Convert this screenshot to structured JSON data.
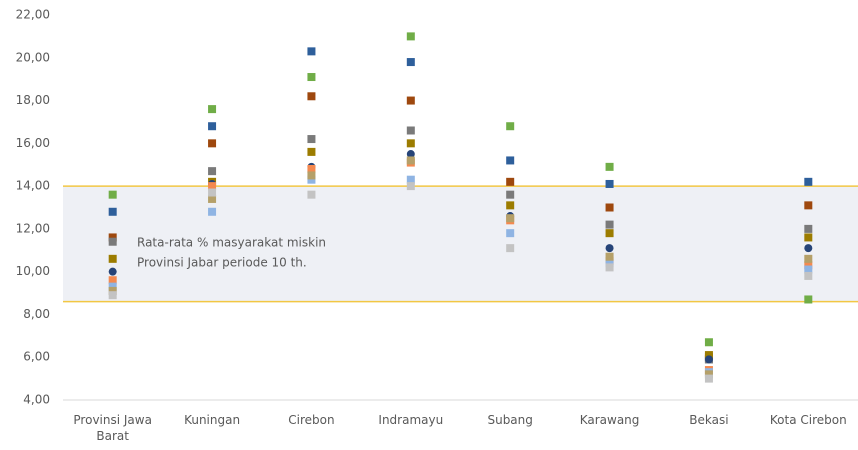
{
  "chart_data": {
    "type": "dot",
    "categories": [
      "Provinsi Jawa Barat",
      "Kuningan",
      "Cirebon",
      "Indramayu",
      "Subang",
      "Karawang",
      "Bekasi",
      "Kota Cirebon"
    ],
    "series": [
      {
        "color": "#2e5f9b",
        "marker": "square",
        "values": [
          12.8,
          16.8,
          20.3,
          19.8,
          15.2,
          14.1,
          5.9,
          14.2
        ]
      },
      {
        "color": "#70ad47",
        "marker": "square",
        "values": [
          13.6,
          17.6,
          19.1,
          21.0,
          16.8,
          14.9,
          6.7,
          8.7
        ]
      },
      {
        "color": "#9e480e",
        "marker": "square",
        "values": [
          11.6,
          16.0,
          18.2,
          18.0,
          14.2,
          13.0,
          6.0,
          13.1
        ]
      },
      {
        "color": "#7a7a7a",
        "marker": "square",
        "values": [
          11.4,
          14.7,
          16.2,
          16.6,
          13.6,
          12.2,
          5.9,
          12.0
        ]
      },
      {
        "color": "#9c7c00",
        "marker": "square",
        "values": [
          10.6,
          14.2,
          15.6,
          16.0,
          13.1,
          11.8,
          6.1,
          11.6
        ]
      },
      {
        "color": "#264478",
        "marker": "circle",
        "values": [
          10.0,
          14.1,
          14.9,
          15.5,
          12.6,
          11.1,
          5.9,
          11.1
        ]
      },
      {
        "color": "#f4894f",
        "marker": "square",
        "values": [
          9.6,
          14.0,
          14.8,
          15.1,
          12.4,
          10.5,
          5.4,
          10.3
        ]
      },
      {
        "color": "#8fb4e3",
        "marker": "square",
        "values": [
          9.3,
          12.8,
          14.3,
          14.3,
          11.8,
          10.4,
          5.3,
          10.1
        ]
      },
      {
        "color": "#b5a069",
        "marker": "square",
        "values": [
          9.1,
          13.4,
          14.5,
          15.2,
          12.5,
          10.7,
          5.2,
          10.6
        ]
      },
      {
        "color": "#c3c3c3",
        "marker": "square",
        "values": [
          8.9,
          13.7,
          13.6,
          14.0,
          11.1,
          10.2,
          5.0,
          9.8
        ]
      }
    ],
    "band": {
      "lower": 8.6,
      "upper": 14.0,
      "color": "#eef0f5",
      "line_color": "#f2c744"
    },
    "annotation": [
      "Rata-rata % masyarakat miskin",
      "Provinsi Jabar periode 10 th."
    ],
    "ylim": [
      4,
      22
    ],
    "yticks": [
      {
        "value": 4,
        "label": "4,00"
      },
      {
        "value": 6,
        "label": "6,00"
      },
      {
        "value": 8,
        "label": "8,00"
      },
      {
        "value": 10,
        "label": "10,00"
      },
      {
        "value": 12,
        "label": "12,00"
      },
      {
        "value": 14,
        "label": "14,00"
      },
      {
        "value": 16,
        "label": "16,00"
      },
      {
        "value": 18,
        "label": "18,00"
      },
      {
        "value": 20,
        "label": "20,00"
      },
      {
        "value": 22,
        "label": "22,00"
      }
    ],
    "grid": false
  }
}
